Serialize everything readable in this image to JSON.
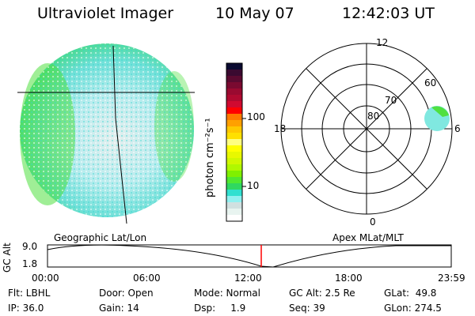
{
  "header": {
    "title": "Ultraviolet Imager",
    "date": "10 May 07",
    "time": "12:42:03 UT"
  },
  "colorbar": {
    "unit_label": "photon cm⁻²s⁻¹",
    "ticks": [
      "100",
      "10"
    ],
    "colors": [
      "#0a0a30",
      "#3a0a30",
      "#5a0a30",
      "#7a0a30",
      "#9a0a30",
      "#b00a30",
      "#d00a30",
      "#ff0000",
      "#ff7a00",
      "#ffa000",
      "#ffc800",
      "#ffe000",
      "#ffff80",
      "#ffff00",
      "#e8f800",
      "#d0f800",
      "#b0f800",
      "#80f000",
      "#50e830",
      "#30d860",
      "#30e0d0",
      "#90f0f0",
      "#d0e0e0",
      "#e8f4f0",
      "#ffffff"
    ]
  },
  "polar": {
    "labels": {
      "top": "12",
      "bottom": "0",
      "left": "18",
      "right": "6"
    },
    "rings": [
      "80",
      "70",
      "60"
    ]
  },
  "timeline": {
    "left_title": "Geographic Lat/Lon",
    "right_title": "Apex MLat/MLT",
    "y_label": "GC Alt",
    "y_ticks": [
      "9.0",
      "1.8"
    ],
    "x_ticks": [
      "00:00",
      "06:00",
      "12:00",
      "18:00",
      "23:59"
    ],
    "current_marker_color": "#ff0000"
  },
  "info": {
    "row1": [
      "Flt: LBHL",
      "Door: Open",
      "Mode: Normal",
      "GC Alt: 2.5 Re",
      "GLat:  49.8"
    ],
    "row2": [
      "IP: 36.0",
      "Gain: 14",
      "Dsp:     1.9",
      "Seq: 39",
      "GLon: 274.5"
    ]
  }
}
